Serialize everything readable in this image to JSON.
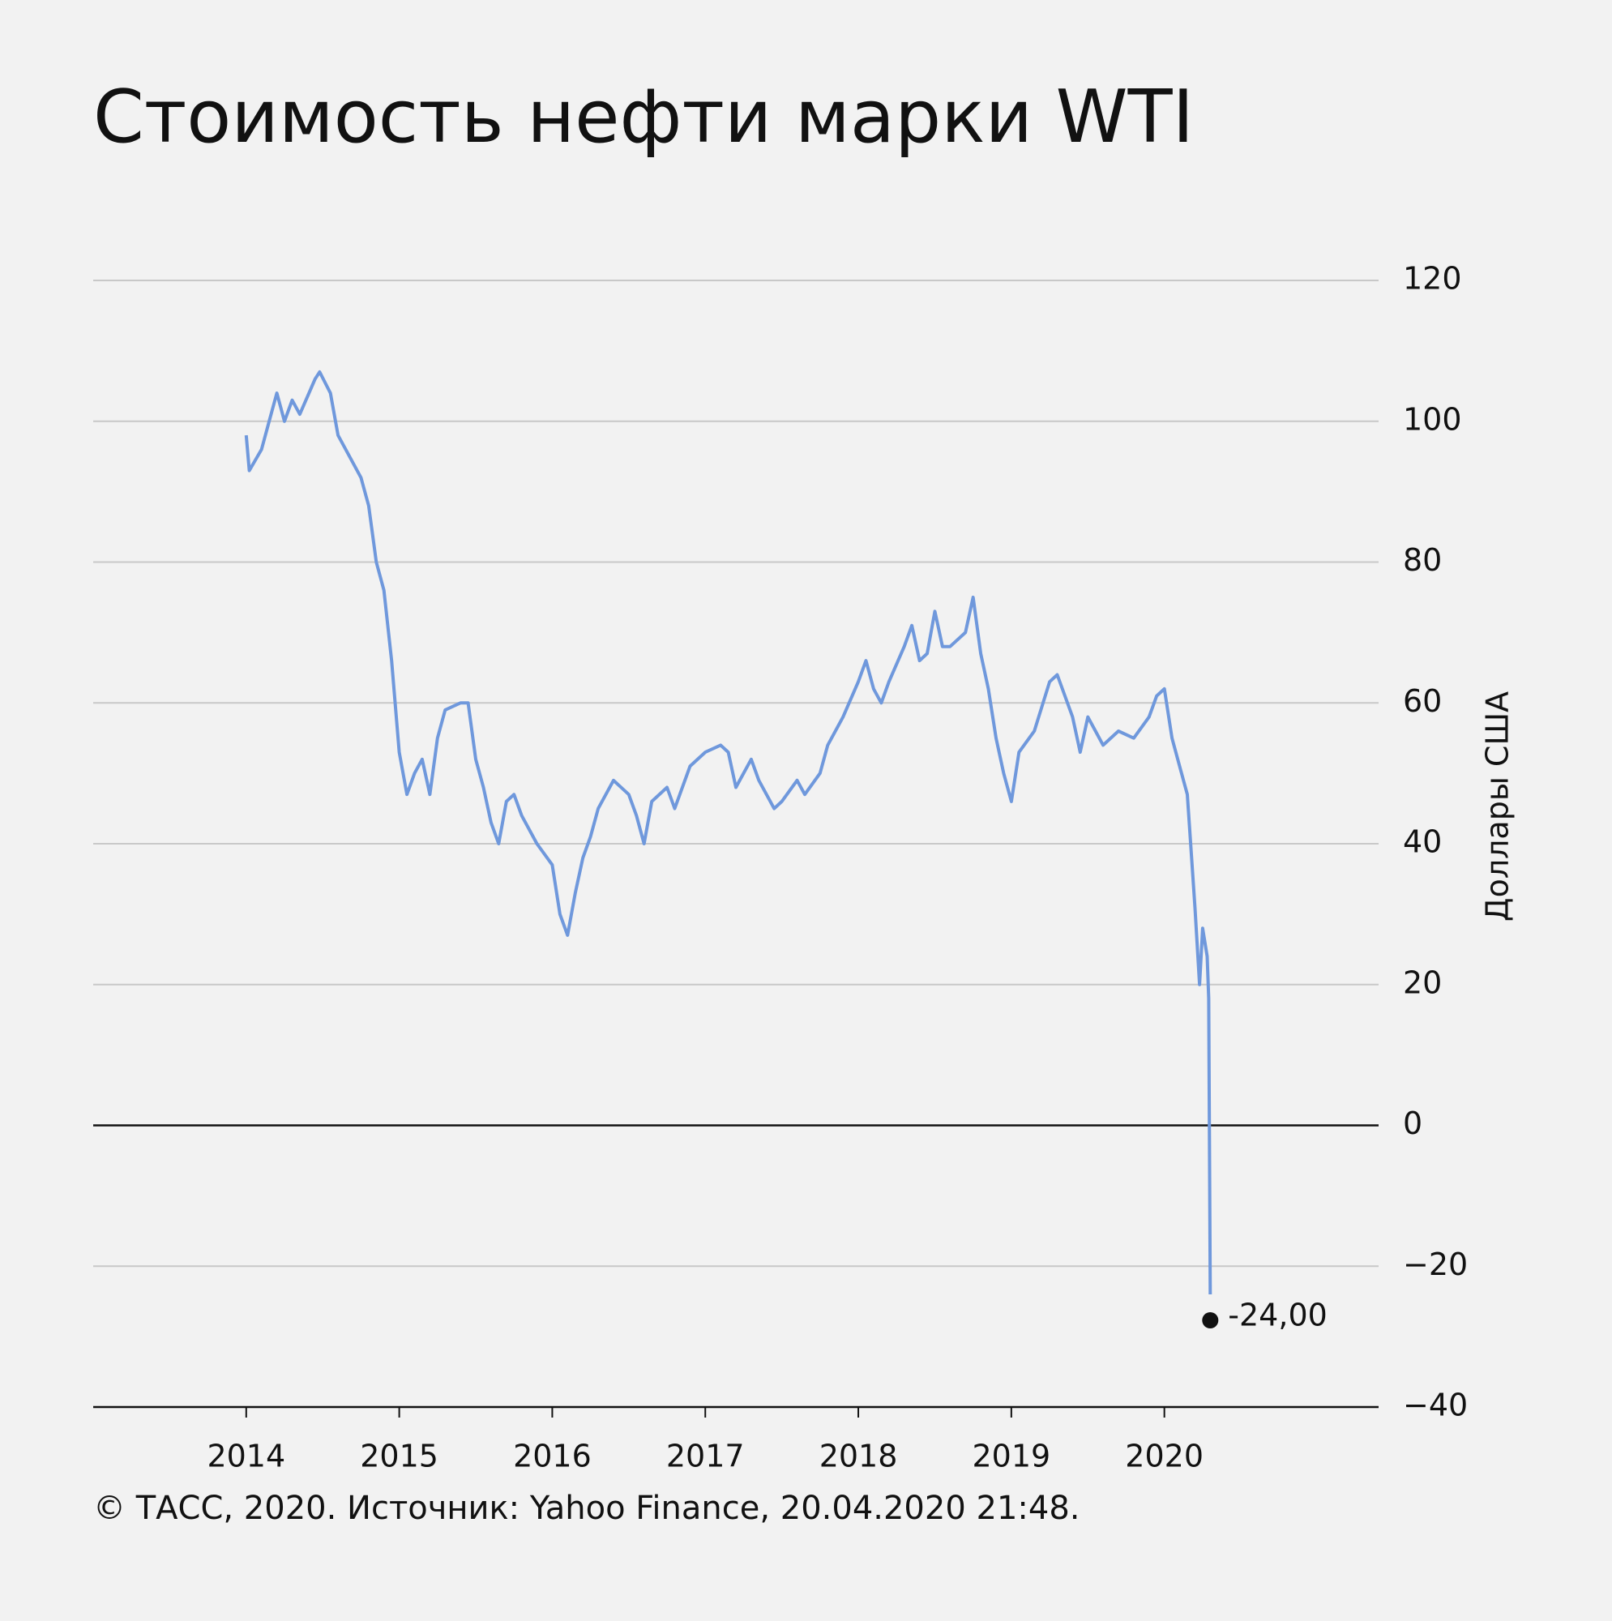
{
  "chart_data": {
    "type": "line",
    "title": "Стоимость нефти марки WTI",
    "y_label": "Доллары США",
    "footer": "© ТАСС, 2020. Источник: Yahoo Finance, 20.04.2020 21:48.",
    "end_label": "-24,00",
    "color": "#6f98dc",
    "grid": true,
    "xlim": [
      2013,
      2021.4
    ],
    "xticks": [
      2014,
      2015,
      2016,
      2017,
      2018,
      2019,
      2020
    ],
    "ylim": [
      -40,
      120
    ],
    "yticks": [
      120,
      100,
      80,
      60,
      40,
      20,
      0,
      {
        "value": -20,
        "label": "−20"
      },
      {
        "value": -40,
        "label": "−40"
      }
    ],
    "x": [
      2014.0,
      2014.02,
      2014.1,
      2014.15,
      2014.2,
      2014.25,
      2014.3,
      2014.35,
      2014.45,
      2014.48,
      2014.55,
      2014.6,
      2014.7,
      2014.75,
      2014.8,
      2014.85,
      2014.9,
      2014.95,
      2015.0,
      2015.05,
      2015.1,
      2015.15,
      2015.2,
      2015.25,
      2015.3,
      2015.4,
      2015.45,
      2015.5,
      2015.55,
      2015.6,
      2015.65,
      2015.7,
      2015.75,
      2015.8,
      2015.9,
      2016.0,
      2016.05,
      2016.1,
      2016.15,
      2016.2,
      2016.25,
      2016.3,
      2016.4,
      2016.5,
      2016.55,
      2016.6,
      2016.65,
      2016.75,
      2016.8,
      2016.9,
      2017.0,
      2017.1,
      2017.15,
      2017.2,
      2017.3,
      2017.35,
      2017.45,
      2017.5,
      2017.6,
      2017.65,
      2017.75,
      2017.8,
      2017.9,
      2018.0,
      2018.05,
      2018.1,
      2018.15,
      2018.2,
      2018.3,
      2018.35,
      2018.4,
      2018.45,
      2018.5,
      2018.55,
      2018.6,
      2018.7,
      2018.75,
      2018.8,
      2018.85,
      2018.9,
      2018.95,
      2019.0,
      2019.05,
      2019.15,
      2019.25,
      2019.3,
      2019.4,
      2019.45,
      2019.5,
      2019.55,
      2019.6,
      2019.7,
      2019.8,
      2019.9,
      2019.95,
      2020.0,
      2020.05,
      2020.1,
      2020.15,
      2020.2,
      2020.23,
      2020.25,
      2020.28,
      2020.29,
      2020.3
    ],
    "values": [
      98,
      93,
      96,
      100,
      104,
      100,
      103,
      101,
      106,
      107,
      104,
      98,
      94,
      92,
      88,
      80,
      76,
      66,
      53,
      47,
      50,
      52,
      47,
      55,
      59,
      60,
      60,
      52,
      48,
      43,
      40,
      46,
      47,
      44,
      40,
      37,
      30,
      27,
      33,
      38,
      41,
      45,
      49,
      47,
      44,
      40,
      46,
      48,
      45,
      51,
      53,
      54,
      53,
      48,
      52,
      49,
      45,
      46,
      49,
      47,
      50,
      54,
      58,
      63,
      66,
      62,
      60,
      63,
      68,
      71,
      66,
      67,
      73,
      68,
      68,
      70,
      75,
      67,
      62,
      55,
      50,
      46,
      53,
      56,
      63,
      64,
      58,
      53,
      58,
      56,
      54,
      56,
      55,
      58,
      61,
      62,
      55,
      51,
      47,
      31,
      20,
      28,
      24,
      18,
      -24
    ]
  }
}
